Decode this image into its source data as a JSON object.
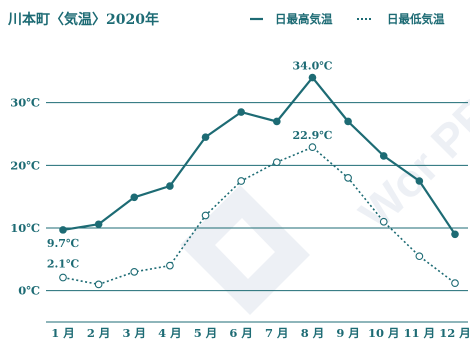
{
  "chart_data": {
    "type": "line",
    "title": "川本町〈気温〉2020年",
    "categories": [
      "1月",
      "2月",
      "3月",
      "4月",
      "5月",
      "6月",
      "7月",
      "8月",
      "9月",
      "10月",
      "11月",
      "12月"
    ],
    "ylim": [
      -5,
      40
    ],
    "yticks": [
      0,
      10,
      20,
      30
    ],
    "ytick_labels": [
      "0℃",
      "10℃",
      "20℃",
      "30℃"
    ],
    "grid": true,
    "legend_position": "top-right",
    "series": [
      {
        "name": "日最高気温",
        "values": [
          9.7,
          10.6,
          14.9,
          16.7,
          24.5,
          28.5,
          27.0,
          34.0,
          27.0,
          21.5,
          17.5,
          9.0
        ],
        "color": "#1d6b74",
        "style": "solid",
        "marker": "filled"
      },
      {
        "name": "日最低気温",
        "values": [
          2.1,
          1.0,
          3.0,
          4.0,
          12.0,
          17.5,
          20.5,
          22.9,
          18.0,
          11.0,
          5.5,
          1.2
        ],
        "color": "#1d6b74",
        "style": "dotted",
        "marker": "open"
      }
    ],
    "annotations": [
      {
        "text": "34.0℃",
        "series": 0,
        "index": 7
      },
      {
        "text": "9.7℃",
        "series": 0,
        "index": 0
      },
      {
        "text": "22.9℃",
        "series": 1,
        "index": 7
      },
      {
        "text": "2.1℃",
        "series": 1,
        "index": 0
      }
    ]
  },
  "watermark": "Wor PR",
  "colors": {
    "line": "#1d6b74",
    "grid": "#1d6b74",
    "text": "#1d6b74"
  }
}
